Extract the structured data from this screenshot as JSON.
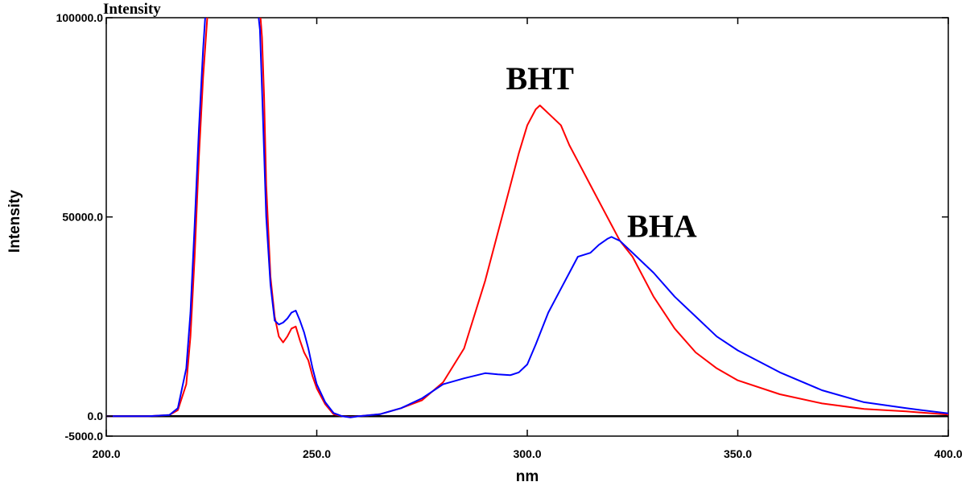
{
  "chart_data": {
    "type": "line",
    "title": "Intensity",
    "xlabel": "nm",
    "ylabel": "Intensity",
    "xlim": [
      200,
      400
    ],
    "ylim": [
      -5000,
      100000
    ],
    "grid": false,
    "x_ticks": [
      200,
      250,
      300,
      350,
      400
    ],
    "x_tick_labels": [
      "200.0",
      "250.0",
      "300.0",
      "350.0",
      "400.0"
    ],
    "y_ticks": [
      -5000,
      0,
      50000,
      100000
    ],
    "y_tick_labels": [
      "-5000.0",
      "0.0",
      "50000.0",
      "100000.0"
    ],
    "zero_line": 0,
    "annotations": [
      {
        "text": "BHT",
        "x": 303,
        "y": 82000
      },
      {
        "text": "BHA",
        "x": 332,
        "y": 45000
      }
    ],
    "series": [
      {
        "name": "BHT",
        "color": "#ff0000",
        "x": [
          200,
          210,
          215,
          217,
          219,
          220,
          221,
          222,
          223,
          224,
          224.5,
          225,
          236.5,
          237,
          237.5,
          238,
          239,
          240,
          241,
          242,
          243,
          244,
          245,
          246,
          247,
          248,
          249,
          250,
          252,
          254,
          256,
          258,
          260,
          265,
          270,
          275,
          280,
          285,
          290,
          293,
          296,
          298,
          300,
          302,
          303,
          304,
          306,
          308,
          310,
          312,
          315,
          318,
          320,
          322,
          325,
          330,
          335,
          340,
          345,
          350,
          360,
          370,
          380,
          390,
          400
        ],
        "y": [
          0,
          0,
          300,
          1500,
          8000,
          20000,
          40000,
          65000,
          85000,
          100000,
          101000,
          102000,
          102000,
          95000,
          80000,
          58000,
          35000,
          25000,
          20000,
          18500,
          20000,
          22000,
          22500,
          19000,
          16000,
          14000,
          10000,
          7000,
          3000,
          500,
          0,
          -200,
          0,
          500,
          2000,
          4000,
          8500,
          17000,
          34000,
          46000,
          58000,
          66000,
          73000,
          77000,
          78000,
          77000,
          75000,
          73000,
          68000,
          64000,
          58000,
          52000,
          48000,
          44000,
          40000,
          30000,
          22000,
          16000,
          12000,
          9000,
          5500,
          3200,
          1800,
          1200,
          400
        ]
      },
      {
        "name": "BHA",
        "color": "#0000ff",
        "x": [
          200,
          210,
          215,
          217,
          219,
          220,
          221,
          222,
          223,
          223.5,
          224,
          236,
          236.5,
          237,
          238,
          239,
          240,
          241,
          242,
          243,
          244,
          245,
          246,
          247,
          248,
          249,
          250,
          252,
          254,
          256,
          258,
          260,
          265,
          270,
          275,
          280,
          285,
          290,
          293,
          296,
          298,
          300,
          302,
          305,
          308,
          310,
          312,
          315,
          317,
          319,
          320,
          321,
          322,
          324,
          326,
          330,
          335,
          340,
          345,
          350,
          360,
          370,
          380,
          390,
          400
        ],
        "y": [
          0,
          0,
          300,
          2000,
          12000,
          26000,
          48000,
          72000,
          92000,
          100000,
          102000,
          102000,
          97000,
          82000,
          50000,
          33000,
          24000,
          23000,
          23500,
          24500,
          26000,
          26500,
          24000,
          21000,
          17000,
          12000,
          8000,
          3500,
          800,
          0,
          -300,
          0,
          500,
          2000,
          4500,
          8000,
          9500,
          10800,
          10500,
          10300,
          11000,
          13000,
          18000,
          26000,
          32000,
          36000,
          40000,
          41000,
          43000,
          44500,
          45000,
          44500,
          44000,
          42000,
          40000,
          36000,
          30000,
          25000,
          20000,
          16500,
          11000,
          6500,
          3500,
          2000,
          700
        ]
      }
    ]
  }
}
